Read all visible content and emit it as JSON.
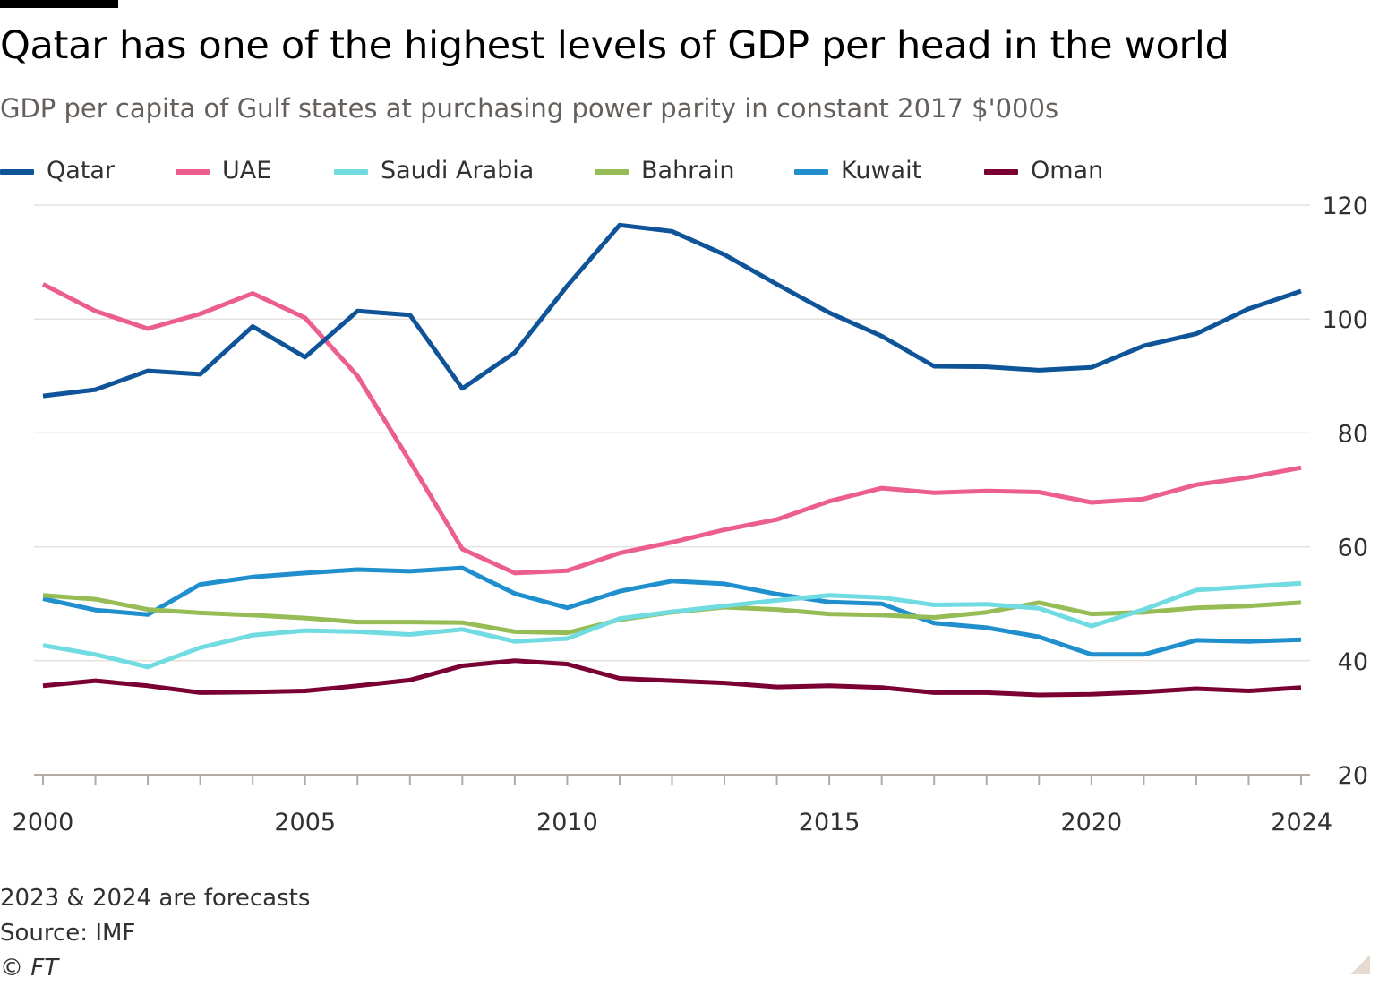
{
  "header": {
    "title": "Qatar has one of the highest levels of GDP per head in the world",
    "subtitle": "GDP per capita of Gulf states at purchasing power parity in constant 2017 $'000s"
  },
  "footer": {
    "note": "2023 & 2024 are forecasts",
    "source": "Source: IMF",
    "copyright": "© FT"
  },
  "chart_data": {
    "type": "line",
    "title": "Qatar has one of the highest levels of GDP per head in the world",
    "subtitle": "GDP per capita of Gulf states at purchasing power parity in constant 2017 $'000s",
    "xlabel": "",
    "ylabel": "",
    "xlim": [
      2000,
      2024
    ],
    "ylim": [
      20,
      120
    ],
    "x_ticks": [
      2000,
      2005,
      2010,
      2015,
      2020,
      2024
    ],
    "y_ticks": [
      20,
      40,
      60,
      80,
      100,
      120
    ],
    "y_axis_side": "right",
    "grid": "horizontal",
    "legend_position": "top-left",
    "x": [
      2000,
      2001,
      2002,
      2003,
      2004,
      2005,
      2006,
      2007,
      2008,
      2009,
      2010,
      2011,
      2012,
      2013,
      2014,
      2015,
      2016,
      2017,
      2018,
      2019,
      2020,
      2021,
      2022,
      2023,
      2024
    ],
    "series": [
      {
        "name": "Qatar",
        "color": "#0f5499",
        "values": [
          86.5,
          87.6,
          90.9,
          90.3,
          98.7,
          93.3,
          101.4,
          100.7,
          87.8,
          94.1,
          105.8,
          116.5,
          115.4,
          111.3,
          106.1,
          101.1,
          97.0,
          91.7,
          91.6,
          91.0,
          91.5,
          95.3,
          97.4,
          101.8,
          104.9
        ]
      },
      {
        "name": "UAE",
        "color": "#eb5e8d",
        "values": [
          106.1,
          101.4,
          98.3,
          100.9,
          104.5,
          100.2,
          90.0,
          75.0,
          59.6,
          55.4,
          55.8,
          58.9,
          60.8,
          63.0,
          64.8,
          68.0,
          70.3,
          69.5,
          69.8,
          69.6,
          67.8,
          68.4,
          70.9,
          72.2,
          73.9
        ]
      },
      {
        "name": "Saudi Arabia",
        "color": "#70dce2",
        "values": [
          42.7,
          41.1,
          38.9,
          42.3,
          44.5,
          45.3,
          45.1,
          44.6,
          45.5,
          43.4,
          43.9,
          47.4,
          48.6,
          49.6,
          50.6,
          51.5,
          51.1,
          49.8,
          49.9,
          49.2,
          46.1,
          49.0,
          52.4,
          53.0,
          53.6
        ]
      },
      {
        "name": "Bahrain",
        "color": "#96bc55",
        "values": [
          51.5,
          50.8,
          49.0,
          48.4,
          48.0,
          47.5,
          46.8,
          46.8,
          46.7,
          45.1,
          44.9,
          47.2,
          48.5,
          49.4,
          49.0,
          48.2,
          48.0,
          47.6,
          48.5,
          50.2,
          48.2,
          48.5,
          49.3,
          49.6,
          50.2
        ]
      },
      {
        "name": "Kuwait",
        "color": "#1f8fce",
        "values": [
          50.9,
          48.9,
          48.1,
          53.4,
          54.7,
          55.4,
          56.0,
          55.7,
          56.3,
          51.8,
          49.3,
          52.2,
          54.0,
          53.5,
          51.7,
          50.3,
          50.0,
          46.6,
          45.8,
          44.2,
          41.1,
          41.1,
          43.6,
          43.4,
          43.7
        ]
      },
      {
        "name": "Oman",
        "color": "#7a0034",
        "values": [
          35.6,
          36.5,
          35.6,
          34.4,
          34.5,
          34.7,
          35.6,
          36.6,
          39.1,
          40.0,
          39.4,
          36.9,
          36.5,
          36.1,
          35.4,
          35.6,
          35.3,
          34.4,
          34.4,
          34.0,
          34.1,
          34.5,
          35.1,
          34.7,
          35.3
        ]
      }
    ]
  }
}
